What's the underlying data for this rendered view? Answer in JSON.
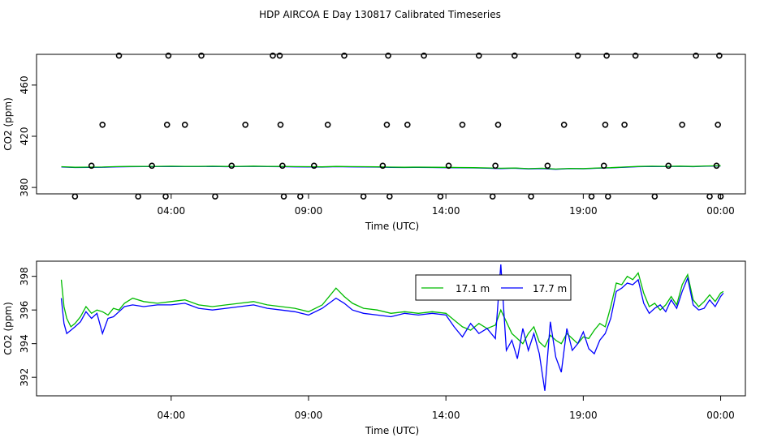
{
  "title": "HDP AIRCOA E  Day 130817  Calibrated Timeseries",
  "chart_data": [
    {
      "type": "scatter",
      "xlabel": "Time (UTC)",
      "ylabel": "CO2 (ppm)",
      "xticks": [
        "04:00",
        "09:00",
        "14:00",
        "19:00",
        "00:00"
      ],
      "xtick_hours": [
        4,
        9,
        14,
        19,
        24
      ],
      "xlim": [
        -0.9,
        24.9
      ],
      "yticks": [
        380,
        420,
        460
      ],
      "ylim": [
        375,
        484
      ],
      "series": [
        {
          "color": "#0000ff",
          "x": [
            0,
            0.5,
            1,
            1.5,
            2,
            2.5,
            3,
            3.5,
            4,
            4.5,
            5,
            5.5,
            6,
            6.5,
            7,
            7.5,
            8,
            8.5,
            9,
            9.5,
            10,
            10.5,
            11,
            11.5,
            12,
            12.5,
            13,
            13.5,
            14,
            14.5,
            15,
            15.5,
            16,
            16.5,
            17,
            17.5,
            18,
            18.5,
            19,
            19.5,
            20,
            20.5,
            21,
            21.5,
            22,
            22.5,
            23,
            23.5,
            24
          ],
          "values": [
            396,
            395.6,
            395.7,
            395.8,
            396.1,
            396.2,
            396.3,
            396.3,
            396.4,
            396.3,
            396.3,
            396.4,
            396.2,
            396.3,
            396.5,
            396.3,
            396.2,
            396.1,
            396.0,
            395.9,
            396.2,
            396.1,
            396.0,
            395.9,
            395.7,
            395.6,
            395.7,
            395.6,
            395.5,
            395.4,
            395.3,
            395.1,
            394.8,
            395.0,
            394.5,
            394.8,
            394.2,
            394.7,
            394.6,
            395.0,
            395.3,
            395.8,
            396.2,
            396.4,
            396.3,
            396.5,
            396.2,
            396.6,
            396.8
          ]
        },
        {
          "color": "#00bb00",
          "x": [
            0,
            0.5,
            1,
            1.5,
            2,
            2.5,
            3,
            3.5,
            4,
            4.5,
            5,
            5.5,
            6,
            6.5,
            7,
            7.5,
            8,
            8.5,
            9,
            9.5,
            10,
            10.5,
            11,
            11.5,
            12,
            12.5,
            13,
            13.5,
            14,
            14.5,
            15,
            15.5,
            16,
            16.5,
            17,
            17.5,
            18,
            18.5,
            19,
            19.5,
            20,
            20.5,
            21,
            21.5,
            22,
            22.5,
            23,
            23.5,
            24
          ],
          "values": [
            396.2,
            395.8,
            395.9,
            396.0,
            396.3,
            396.4,
            396.5,
            396.5,
            396.6,
            396.5,
            396.5,
            396.6,
            396.4,
            396.5,
            396.7,
            396.5,
            396.4,
            396.3,
            396.2,
            396.1,
            396.4,
            396.3,
            396.2,
            396.1,
            395.9,
            395.8,
            395.9,
            395.8,
            395.7,
            395.6,
            395.5,
            395.3,
            395.0,
            395.2,
            394.7,
            395.0,
            394.4,
            394.9,
            394.8,
            395.2,
            395.5,
            396.0,
            396.4,
            396.6,
            396.5,
            396.7,
            396.4,
            396.8,
            397.0
          ]
        },
        {
          "marker": "circle",
          "color": "#000000",
          "x": [
            0.5,
            1.1,
            1.5,
            2.1,
            2.8,
            3.3,
            3.8,
            3.85,
            3.9,
            4.5,
            5.1,
            5.6,
            6.2,
            6.7,
            7.7,
            7.95,
            7.98,
            8.05,
            8.1,
            8.7,
            9.2,
            9.7,
            10.3,
            11.0,
            11.7,
            11.85,
            11.9,
            11.95,
            12.6,
            13.2,
            13.8,
            14.1,
            14.6,
            15.2,
            15.7,
            15.8,
            15.9,
            16.5,
            17.1,
            17.7,
            18.3,
            18.8,
            19.3,
            19.75,
            19.8,
            19.85,
            19.9,
            20.5,
            20.9,
            21.6,
            22.1,
            22.6,
            23.1,
            23.6,
            23.85,
            23.9,
            23.95,
            24.0
          ],
          "values": [
            373,
            397,
            429,
            483,
            373,
            397,
            373,
            429,
            483,
            429,
            483,
            373,
            397,
            429,
            483,
            483,
            429,
            397,
            373,
            373,
            397,
            429,
            483,
            373,
            397,
            429,
            483,
            373,
            429,
            483,
            373,
            397,
            429,
            483,
            373,
            397,
            429,
            483,
            373,
            397,
            429,
            483,
            373,
            397,
            429,
            483,
            373,
            429,
            483,
            373,
            397,
            429,
            483,
            373,
            397,
            429,
            483,
            373
          ]
        }
      ]
    },
    {
      "type": "line",
      "xlabel": "Time (UTC)",
      "ylabel": "CO2 (ppm)",
      "xticks": [
        "04:00",
        "09:00",
        "14:00",
        "19:00",
        "00:00"
      ],
      "xtick_hours": [
        4,
        9,
        14,
        19,
        24
      ],
      "xlim": [
        -0.9,
        24.9
      ],
      "yticks": [
        392,
        394,
        396,
        398
      ],
      "ylim": [
        390.9,
        398.9
      ],
      "legend": {
        "position": "top-right",
        "entries": [
          {
            "label": "17.1 m",
            "color": "#00bb00"
          },
          {
            "label": "17.7 m",
            "color": "#0000ff"
          }
        ]
      },
      "series": [
        {
          "name": "17.1 m",
          "color": "#00bb00",
          "x": [
            0,
            0.1,
            0.2,
            0.35,
            0.5,
            0.7,
            0.9,
            1.1,
            1.3,
            1.5,
            1.7,
            1.9,
            2.1,
            2.3,
            2.6,
            3.0,
            3.5,
            4.0,
            4.5,
            5.0,
            5.5,
            6.0,
            6.5,
            7.0,
            7.5,
            8.0,
            8.5,
            9.0,
            9.5,
            10.0,
            10.3,
            10.6,
            11.0,
            11.5,
            12.0,
            12.5,
            13.0,
            13.5,
            14.0,
            14.3,
            14.6,
            14.9,
            15.2,
            15.5,
            15.8,
            16.0,
            16.2,
            16.4,
            16.6,
            16.8,
            17.0,
            17.2,
            17.4,
            17.6,
            17.8,
            18.0,
            18.2,
            18.4,
            18.6,
            18.8,
            19.0,
            19.2,
            19.4,
            19.6,
            19.8,
            20.0,
            20.2,
            20.4,
            20.6,
            20.8,
            21.0,
            21.2,
            21.4,
            21.6,
            21.8,
            22.0,
            22.2,
            22.4,
            22.6,
            22.8,
            23.0,
            23.2,
            23.4,
            23.6,
            23.8,
            24.0,
            24.1
          ],
          "values": [
            397.8,
            396.2,
            395.5,
            395.0,
            395.2,
            395.6,
            396.2,
            395.8,
            396.0,
            395.9,
            395.7,
            396.1,
            396.0,
            396.4,
            396.7,
            396.5,
            396.4,
            396.5,
            396.6,
            396.3,
            396.2,
            396.3,
            396.4,
            396.5,
            396.3,
            396.2,
            396.1,
            395.9,
            396.3,
            397.3,
            396.8,
            396.4,
            396.1,
            396.0,
            395.8,
            395.9,
            395.8,
            395.9,
            395.8,
            395.4,
            395.0,
            394.8,
            395.2,
            394.9,
            395.1,
            396.0,
            395.3,
            394.6,
            394.3,
            394.0,
            394.6,
            395.0,
            394.1,
            393.8,
            394.5,
            394.2,
            394.0,
            394.6,
            394.3,
            394.0,
            394.4,
            394.3,
            394.8,
            395.2,
            395.0,
            396.2,
            397.6,
            397.5,
            398.0,
            397.8,
            398.2,
            397.0,
            396.2,
            396.4,
            396.0,
            396.3,
            396.8,
            396.3,
            397.5,
            398.1,
            396.6,
            396.2,
            396.5,
            396.9,
            396.5,
            397.0,
            397.1
          ]
        },
        {
          "name": "17.7 m",
          "color": "#0000ff",
          "x": [
            0,
            0.1,
            0.2,
            0.35,
            0.5,
            0.7,
            0.9,
            1.1,
            1.3,
            1.5,
            1.7,
            1.9,
            2.1,
            2.3,
            2.6,
            3.0,
            3.5,
            4.0,
            4.5,
            5.0,
            5.5,
            6.0,
            6.5,
            7.0,
            7.5,
            8.0,
            8.5,
            9.0,
            9.5,
            10.0,
            10.3,
            10.6,
            11.0,
            11.5,
            12.0,
            12.5,
            13.0,
            13.5,
            14.0,
            14.3,
            14.6,
            14.9,
            15.2,
            15.5,
            15.8,
            16.0,
            16.2,
            16.4,
            16.6,
            16.8,
            17.0,
            17.2,
            17.4,
            17.6,
            17.8,
            18.0,
            18.2,
            18.4,
            18.6,
            18.8,
            19.0,
            19.2,
            19.4,
            19.6,
            19.8,
            20.0,
            20.2,
            20.4,
            20.6,
            20.8,
            21.0,
            21.2,
            21.4,
            21.6,
            21.8,
            22.0,
            22.2,
            22.4,
            22.6,
            22.8,
            23.0,
            23.2,
            23.4,
            23.6,
            23.8,
            24.0,
            24.1
          ],
          "values": [
            396.7,
            395.2,
            394.6,
            394.8,
            395.0,
            395.3,
            395.9,
            395.5,
            395.8,
            394.6,
            395.5,
            395.6,
            395.9,
            396.2,
            396.3,
            396.2,
            396.3,
            396.3,
            396.4,
            396.1,
            396.0,
            396.1,
            396.2,
            396.3,
            396.1,
            396.0,
            395.9,
            395.7,
            396.1,
            396.7,
            396.4,
            396.0,
            395.8,
            395.7,
            395.6,
            395.8,
            395.7,
            395.8,
            395.7,
            395.0,
            394.4,
            395.2,
            394.6,
            394.9,
            394.3,
            398.7,
            393.6,
            394.2,
            393.1,
            394.9,
            393.6,
            394.6,
            393.4,
            391.2,
            395.3,
            393.2,
            392.3,
            394.9,
            393.6,
            394.0,
            394.7,
            393.7,
            393.4,
            394.2,
            394.6,
            395.5,
            397.1,
            397.3,
            397.6,
            397.5,
            397.8,
            396.4,
            395.8,
            396.1,
            396.3,
            395.9,
            396.6,
            396.1,
            397.1,
            397.9,
            396.3,
            396.0,
            396.1,
            396.6,
            396.2,
            396.8,
            397.0
          ]
        }
      ]
    }
  ]
}
